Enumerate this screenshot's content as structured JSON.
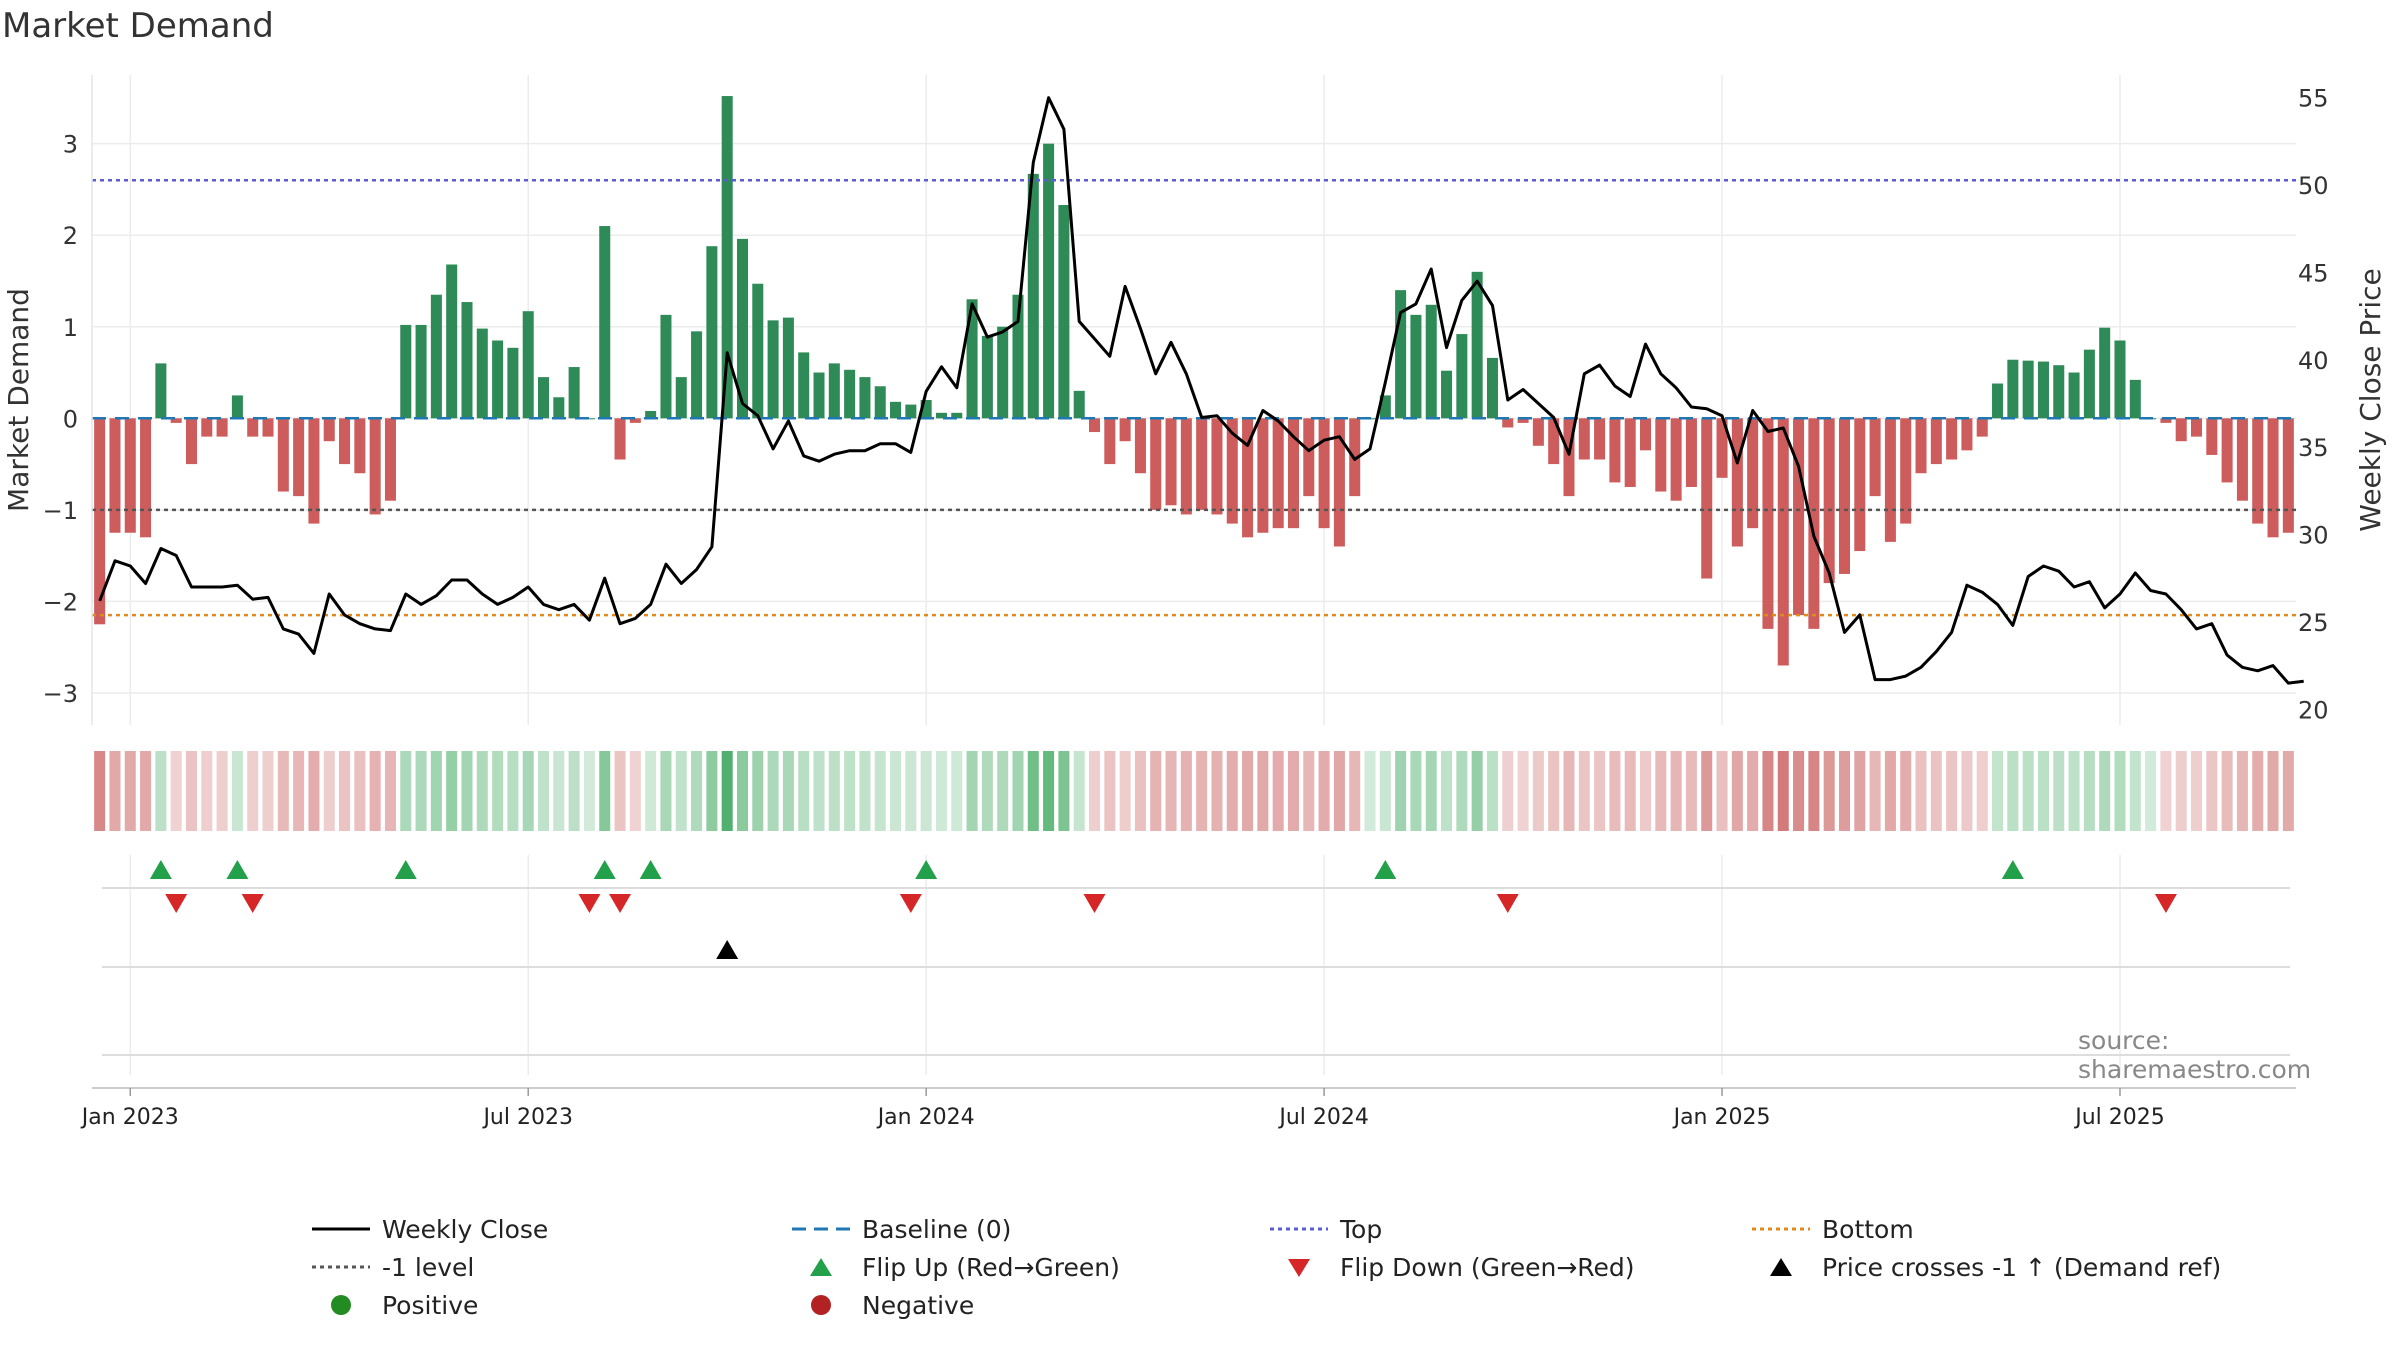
{
  "title": "Market Demand",
  "source": "source: sharemaestro.com",
  "colors": {
    "positive": "#2e8b57",
    "negative": "#cd5c5c",
    "price": "#000000",
    "top": "#5b5bd6",
    "bottom": "#e08a1e",
    "minus_one": "#555555",
    "baseline": "#1f77b4",
    "flip_up": "#22a04a",
    "flip_down": "#d62728",
    "cross": "#000000"
  },
  "chart_data": {
    "type": "bar+line",
    "title": "Market Demand",
    "ylabel_left": "Market Demand",
    "ylabel_right": "Weekly Close Price",
    "ylim_left": [
      -3.35,
      3.75
    ],
    "ylim_right": [
      19.1,
      56.3
    ],
    "yticks_left": [
      3,
      2,
      1,
      0,
      -1,
      -2,
      -3
    ],
    "ytick_labels_left": [
      "3",
      "2",
      "1",
      "0",
      "−1",
      "−2",
      "−3"
    ],
    "yticks_right": [
      55,
      50,
      45,
      40,
      35,
      30,
      25,
      20
    ],
    "ytick_labels_right": [
      "55",
      "50",
      "45",
      "40",
      "35",
      "30",
      "25",
      "20"
    ],
    "x_ticks": [
      "Jan 2023",
      "Jul 2023",
      "Jan 2024",
      "Jul 2024",
      "Jan 2025",
      "Jul 2025"
    ],
    "x_tick_weeks": [
      2,
      28,
      54,
      80,
      106,
      132
    ],
    "reference_lines": {
      "top": 2.6,
      "bottom": -2.15,
      "minus_one": -1.0,
      "baseline": 0
    },
    "demand": [
      -2.25,
      -1.25,
      -1.25,
      -1.3,
      0.6,
      -0.05,
      -0.5,
      -0.2,
      -0.2,
      0.25,
      -0.2,
      -0.2,
      -0.8,
      -0.85,
      -1.15,
      -0.25,
      -0.5,
      -0.6,
      -1.05,
      -0.9,
      1.02,
      1.02,
      1.35,
      1.68,
      1.27,
      0.98,
      0.85,
      0.77,
      1.17,
      0.45,
      0.23,
      0.56,
      0.0,
      2.1,
      -0.45,
      -0.05,
      0.08,
      1.13,
      0.45,
      0.95,
      1.88,
      3.52,
      1.96,
      1.47,
      1.07,
      1.1,
      0.72,
      0.5,
      0.6,
      0.53,
      0.45,
      0.35,
      0.18,
      0.15,
      0.2,
      0.06,
      0.06,
      1.3,
      0.9,
      1.0,
      1.35,
      2.67,
      3.0,
      2.33,
      0.3,
      -0.15,
      -0.5,
      -0.25,
      -0.6,
      -1.0,
      -0.95,
      -1.05,
      -1.0,
      -1.05,
      -1.15,
      -1.3,
      -1.25,
      -1.2,
      -1.2,
      -0.85,
      -1.2,
      -1.4,
      -0.85,
      0.0,
      0.25,
      1.4,
      1.13,
      1.24,
      0.52,
      0.92,
      1.6,
      0.66,
      -0.1,
      -0.05,
      -0.3,
      -0.5,
      -0.85,
      -0.45,
      -0.45,
      -0.7,
      -0.75,
      -0.35,
      -0.8,
      -0.9,
      -0.75,
      -1.75,
      -0.65,
      -1.4,
      -1.2,
      -2.3,
      -2.7,
      -2.15,
      -2.3,
      -1.8,
      -1.7,
      -1.45,
      -0.85,
      -1.35,
      -1.15,
      -0.6,
      -0.5,
      -0.45,
      -0.35,
      -0.2,
      0.38,
      0.64,
      0.63,
      0.62,
      0.58,
      0.5,
      0.75,
      0.99,
      0.85,
      0.42,
      0.0,
      -0.05,
      -0.25,
      -0.2,
      -0.4,
      -0.7,
      -0.9,
      -1.15,
      -1.3,
      -1.25
    ],
    "weekly_close": [
      26.2,
      28.5,
      28.2,
      27.2,
      29.2,
      28.8,
      27.0,
      27.0,
      27.0,
      27.1,
      26.3,
      26.4,
      24.6,
      24.3,
      23.2,
      26.6,
      25.4,
      24.9,
      24.6,
      24.5,
      26.6,
      26.0,
      26.5,
      27.4,
      27.4,
      26.6,
      26.0,
      26.4,
      27.0,
      26.0,
      25.7,
      26.0,
      25.1,
      27.5,
      24.9,
      25.2,
      26.0,
      28.3,
      27.2,
      28.0,
      29.3,
      40.4,
      37.5,
      36.8,
      34.9,
      36.5,
      34.5,
      34.2,
      34.6,
      34.8,
      34.8,
      35.2,
      35.2,
      34.7,
      38.2,
      39.6,
      38.4,
      43.2,
      41.3,
      41.6,
      42.2,
      51.3,
      55.0,
      53.2,
      42.2,
      41.2,
      40.2,
      44.2,
      41.8,
      39.2,
      41.0,
      39.2,
      36.7,
      36.8,
      35.8,
      35.1,
      37.1,
      36.5,
      35.6,
      34.8,
      35.4,
      35.6,
      34.3,
      34.9,
      38.7,
      42.7,
      43.2,
      45.2,
      40.7,
      43.4,
      44.5,
      43.1,
      37.7,
      38.3,
      37.5,
      36.7,
      34.6,
      39.2,
      39.7,
      38.5,
      37.9,
      40.9,
      39.2,
      38.4,
      37.3,
      37.2,
      36.8,
      34.1,
      37.1,
      35.9,
      36.1,
      33.9,
      29.9,
      27.8,
      24.4,
      25.4,
      21.7,
      21.7,
      21.9,
      22.4,
      23.3,
      24.4,
      27.1,
      26.7,
      26.0,
      24.8,
      27.6,
      28.2,
      27.9,
      27.0,
      27.3,
      25.8,
      26.6,
      27.8,
      26.8,
      26.6,
      25.7,
      24.6,
      24.9,
      23.1,
      22.4,
      22.2,
      22.5,
      21.5,
      21.6
    ],
    "flip_up_weeks": [
      4,
      9,
      20,
      33,
      36,
      54,
      84,
      125
    ],
    "flip_down_weeks": [
      5,
      10,
      32,
      34,
      53,
      65,
      92,
      135
    ],
    "price_cross_up_weeks": [
      41
    ]
  },
  "legend": [
    {
      "key": "weekly_close",
      "label": "Weekly Close",
      "icon": "solid-line"
    },
    {
      "key": "baseline",
      "label": "Baseline (0)",
      "icon": "dashed-line"
    },
    {
      "key": "top",
      "label": "Top",
      "icon": "dotted-line"
    },
    {
      "key": "bottom",
      "label": "Bottom",
      "icon": "dotted-line"
    },
    {
      "key": "minus_one",
      "label": "-1 level",
      "icon": "dotted-line"
    },
    {
      "key": "flip_up",
      "label": "Flip Up (Red→Green)",
      "icon": "triangle-up"
    },
    {
      "key": "flip_down",
      "label": "Flip Down (Green→Red)",
      "icon": "triangle-down"
    },
    {
      "key": "cross",
      "label": "Price crosses -1 ↑ (Demand ref)",
      "icon": "triangle-up"
    },
    {
      "key": "positive",
      "label": "Positive",
      "icon": "circle"
    },
    {
      "key": "negative",
      "label": "Negative",
      "icon": "circle"
    }
  ]
}
